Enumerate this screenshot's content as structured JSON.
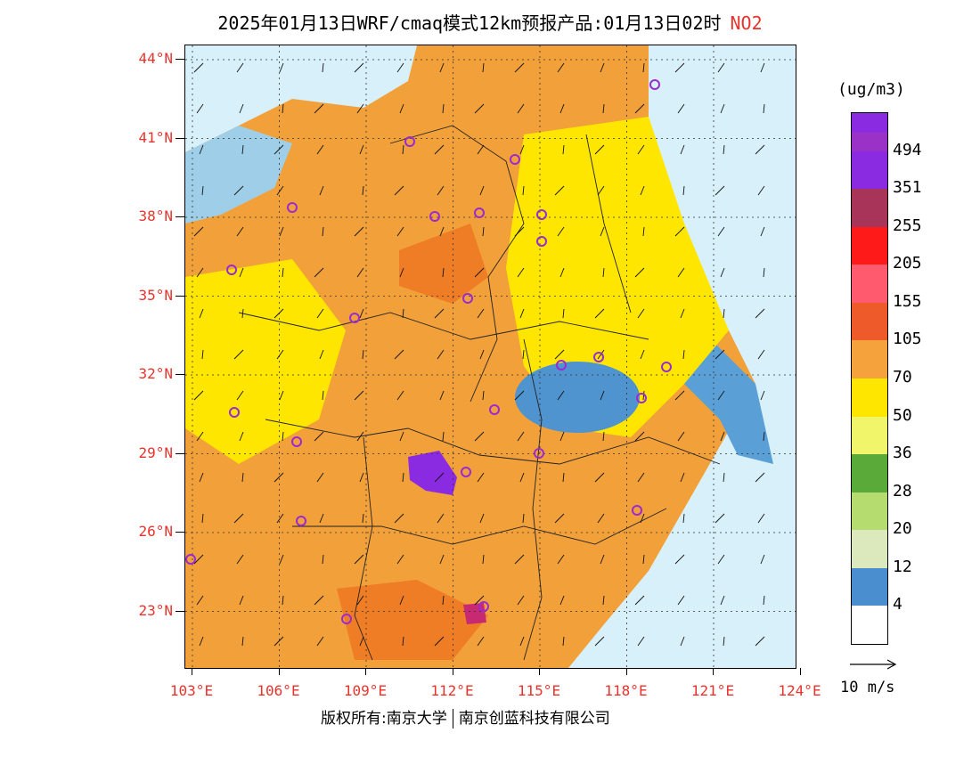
{
  "title": {
    "main": "2025年01月13日WRF/cmaq模式12km预报产品:01月13日02时",
    "species": "NO2"
  },
  "map": {
    "lat_labels": [
      "44°N",
      "41°N",
      "38°N",
      "35°N",
      "32°N",
      "29°N",
      "26°N",
      "23°N"
    ],
    "lon_labels": [
      "103°E",
      "106°E",
      "109°E",
      "112°E",
      "115°E",
      "118°E",
      "121°E",
      "124°E"
    ],
    "colors": {
      "ocean_low": "#d8f0fa",
      "blue_mid": "#5a9fd6",
      "yellow": "#ffe600",
      "orange": "#f2a03a",
      "deep_orange": "#ee7d25",
      "purple_hotspot": "#8a2be2",
      "station_marker": "#9a2ad2",
      "axis_label": "#e8332d"
    }
  },
  "legend": {
    "unit": "(ug/m3)",
    "levels": [
      {
        "label": "494",
        "color": "#8a2be2"
      },
      {
        "label": "351",
        "color": "#a8345a"
      },
      {
        "label": "255",
        "color": "#ff1a1a"
      },
      {
        "label": "205",
        "color": "#ff5a6e"
      },
      {
        "label": "155",
        "color": "#ee5a2a"
      },
      {
        "label": "105",
        "color": "#f5a23c"
      },
      {
        "label": "70",
        "color": "#ffe600"
      },
      {
        "label": "50",
        "color": "#f0f56a"
      },
      {
        "label": "36",
        "color": "#5aaa3a"
      },
      {
        "label": "28",
        "color": "#b4dc6e"
      },
      {
        "label": "20",
        "color": "#dce9bc"
      },
      {
        "label": "12",
        "color": "#4a8ed0"
      },
      {
        "label": "4",
        "color": "#a5d8f5"
      }
    ],
    "top_colors": [
      "#8a2be2",
      "#9a32c8"
    ],
    "bottom_color": "#ffffff"
  },
  "wind_reference": {
    "label": "10 m/s"
  },
  "footer": {
    "copyright_left": "版权所有:南京大学",
    "copyright_right": "南京创蓝科技有限公司"
  }
}
